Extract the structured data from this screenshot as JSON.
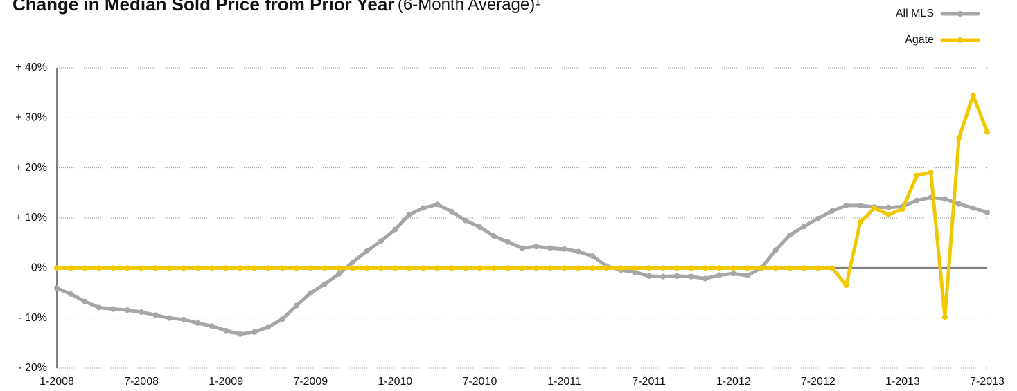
{
  "chart_data": {
    "type": "line",
    "title": "Change in Median Sold Price from Prior Year",
    "title_note": "(6-Month Average)¹",
    "categories": [
      "1-2008",
      null,
      null,
      null,
      null,
      null,
      "7-2008",
      null,
      null,
      null,
      null,
      null,
      "1-2009",
      null,
      null,
      null,
      null,
      null,
      "7-2009",
      null,
      null,
      null,
      null,
      null,
      "1-2010",
      null,
      null,
      null,
      null,
      null,
      "7-2010",
      null,
      null,
      null,
      null,
      null,
      "1-2011",
      null,
      null,
      null,
      null,
      null,
      "7-2011",
      null,
      null,
      null,
      null,
      null,
      "1-2012",
      null,
      null,
      null,
      null,
      null,
      "7-2012",
      null,
      null,
      null,
      null,
      null,
      "1-2013",
      null,
      null,
      null,
      null,
      null,
      "7-2013"
    ],
    "series": [
      {
        "name": "All MLS",
        "color": "#a6a6a6",
        "values": [
          -4,
          -5.2,
          -6.7,
          -7.9,
          -8.2,
          -8.4,
          -8.8,
          -9.4,
          -10,
          -10.3,
          -11,
          -11.6,
          -12.5,
          -13.2,
          -12.8,
          -11.8,
          -10.2,
          -7.5,
          -5,
          -3.2,
          -1.2,
          1.2,
          3.4,
          5.4,
          7.7,
          10.7,
          12,
          12.7,
          11.3,
          9.5,
          8.2,
          6.4,
          5.2,
          4,
          4.3,
          4,
          3.8,
          3.3,
          2.4,
          0.4,
          -0.4,
          -0.8,
          -1.6,
          -1.7,
          -1.6,
          -1.7,
          -2.1,
          -1.4,
          -1.1,
          -1.5,
          0.1,
          3.6,
          6.6,
          8.3,
          9.9,
          11.4,
          12.5,
          12.5,
          12.2,
          12.1,
          12.3,
          13.5,
          14.1,
          13.8,
          12.8,
          12,
          11.1
        ]
      },
      {
        "name": "Agate",
        "color": "#f0c800",
        "values": [
          0,
          0,
          0,
          0,
          0,
          0,
          0,
          0,
          0,
          0,
          0,
          0,
          0,
          0,
          0,
          0,
          0,
          0,
          0,
          0,
          0,
          0,
          0,
          0,
          0,
          0,
          0,
          0,
          0,
          0,
          0,
          0,
          0,
          0,
          0,
          0,
          0,
          0,
          0,
          0,
          0,
          0,
          0,
          0,
          0,
          0,
          0,
          0,
          0,
          0,
          0,
          0,
          0,
          0,
          0,
          0,
          -3.4,
          9.2,
          12,
          10.7,
          11.8,
          18.5,
          19.1,
          -9.8,
          26,
          34.5,
          27.2
        ]
      }
    ],
    "ylim": [
      -20,
      40
    ],
    "yticks": [
      {
        "value": 40,
        "label": "+ 40%"
      },
      {
        "value": 30,
        "label": "+ 30%"
      },
      {
        "value": 20,
        "label": "+ 20%"
      },
      {
        "value": 10,
        "label": "+ 10%"
      },
      {
        "value": 0,
        "label": "0%"
      },
      {
        "value": -10,
        "label": "- 10%"
      },
      {
        "value": -20,
        "label": "- 20%"
      }
    ],
    "grid": true,
    "legend": "top-right"
  }
}
